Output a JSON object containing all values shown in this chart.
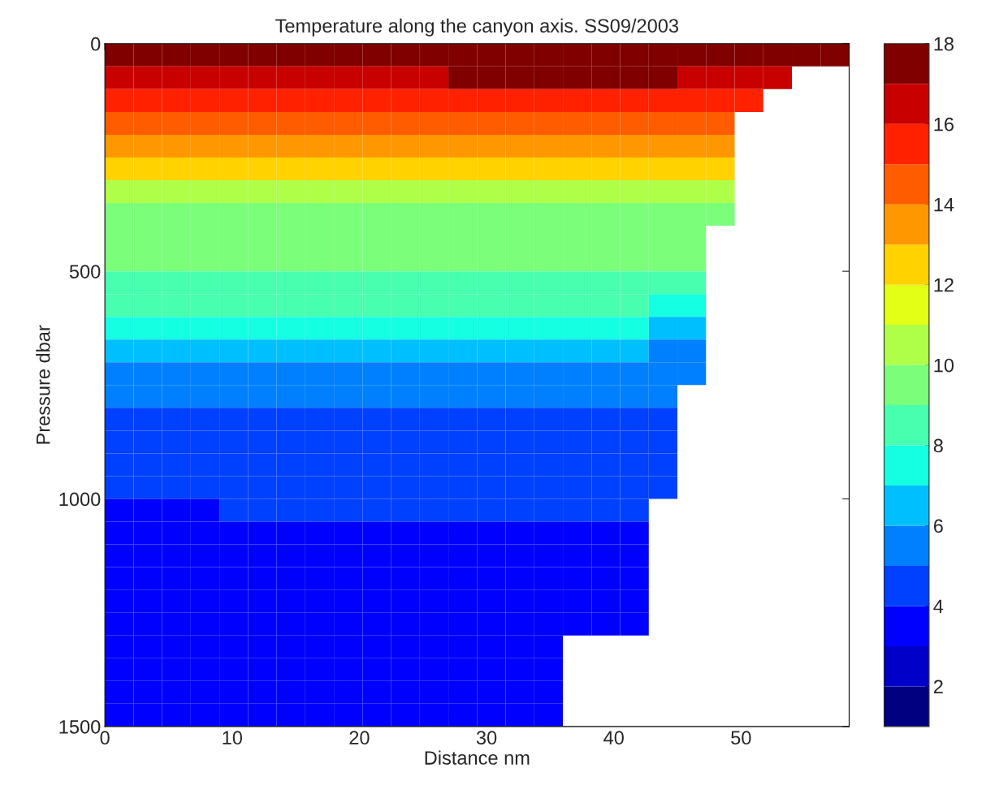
{
  "chart_data": {
    "type": "heatmap",
    "title": "Temperature along the canyon axis. SS09/2003",
    "xlabel": "Distance nm",
    "ylabel": "Pressure dbar",
    "xlim": [
      0,
      58.5
    ],
    "xticks": [
      0,
      10,
      20,
      30,
      40,
      50
    ],
    "ylim": [
      1500,
      0
    ],
    "yticks": [
      0,
      500,
      1000,
      1500
    ],
    "clim": [
      1,
      18
    ],
    "cticks": [
      2,
      4,
      6,
      8,
      10,
      12,
      14,
      16,
      18
    ],
    "grid": false,
    "cells": [
      [
        17.3,
        17.3,
        17.3,
        17.3,
        17.3,
        17.3,
        17.3,
        17.3,
        17.3,
        17.3,
        17.3,
        17.8,
        17.8,
        17.8,
        17.8,
        17.8,
        17.8,
        17.8,
        17.8,
        17.3,
        17.3,
        17.3,
        17.3,
        17.3,
        17.3,
        17.3
      ],
      [
        16.3,
        16.3,
        16.3,
        16.3,
        16.3,
        16.3,
        16.3,
        16.3,
        16.3,
        16.3,
        16.3,
        16.3,
        17.0,
        17.0,
        17.0,
        17.0,
        17.0,
        17.0,
        17.0,
        17.0,
        16.3,
        16.3,
        16.3,
        16.3,
        null,
        null
      ],
      [
        15.3,
        15.3,
        15.3,
        15.3,
        15.3,
        15.3,
        15.3,
        15.3,
        15.3,
        15.3,
        15.3,
        15.3,
        15.3,
        15.3,
        15.3,
        15.3,
        15.3,
        15.3,
        15.3,
        15.3,
        15.3,
        15.3,
        15.3,
        null,
        null,
        null
      ],
      [
        14.3,
        14.3,
        14.3,
        14.3,
        14.3,
        14.3,
        14.3,
        14.3,
        14.3,
        14.3,
        14.3,
        14.3,
        14.3,
        14.3,
        14.3,
        14.3,
        14.3,
        14.3,
        14.3,
        14.3,
        14.3,
        14.3,
        null,
        null,
        null,
        null
      ],
      [
        13.3,
        13.3,
        13.3,
        13.3,
        13.3,
        13.3,
        13.3,
        13.3,
        13.3,
        13.3,
        13.3,
        13.3,
        13.3,
        13.3,
        13.3,
        13.3,
        13.3,
        13.3,
        13.3,
        13.3,
        13.3,
        13.3,
        null,
        null,
        null,
        null
      ],
      [
        12.0,
        12.0,
        12.0,
        12.0,
        12.0,
        12.0,
        12.0,
        12.0,
        12.0,
        12.0,
        12.0,
        12.0,
        12.0,
        12.0,
        12.0,
        12.0,
        12.0,
        12.0,
        12.0,
        12.0,
        12.0,
        12.0,
        null,
        null,
        null,
        null
      ],
      [
        10.6,
        10.6,
        10.6,
        10.6,
        10.6,
        10.6,
        10.6,
        10.6,
        10.6,
        10.6,
        10.6,
        10.6,
        10.6,
        10.6,
        10.6,
        10.6,
        10.6,
        10.6,
        10.6,
        10.6,
        10.6,
        10.6,
        null,
        null,
        null,
        null
      ],
      [
        9.8,
        9.8,
        9.8,
        9.8,
        9.8,
        9.8,
        9.8,
        9.8,
        9.8,
        9.8,
        9.8,
        9.8,
        9.8,
        9.8,
        9.8,
        9.8,
        9.8,
        9.8,
        9.8,
        9.8,
        9.8,
        9.8,
        null,
        null,
        null,
        null
      ],
      [
        9.4,
        9.4,
        9.4,
        9.4,
        9.4,
        9.4,
        9.4,
        9.4,
        9.4,
        9.4,
        9.4,
        9.4,
        9.4,
        9.4,
        9.4,
        9.4,
        9.4,
        9.4,
        9.4,
        9.4,
        9.4,
        null,
        null,
        null,
        null,
        null
      ],
      [
        9.1,
        9.1,
        9.1,
        9.1,
        9.1,
        9.1,
        9.1,
        9.1,
        9.1,
        9.1,
        9.1,
        9.1,
        9.1,
        9.1,
        9.1,
        9.1,
        9.1,
        9.1,
        9.1,
        9.1,
        9.1,
        null,
        null,
        null,
        null,
        null
      ],
      [
        8.5,
        8.5,
        8.5,
        8.5,
        8.5,
        8.5,
        8.5,
        8.5,
        8.5,
        8.5,
        8.5,
        8.5,
        8.5,
        8.5,
        8.5,
        8.5,
        8.5,
        8.5,
        8.5,
        8.0,
        8.0,
        null,
        null,
        null,
        null,
        null
      ],
      [
        8.0,
        8.0,
        8.0,
        8.0,
        8.0,
        8.0,
        8.0,
        8.0,
        8.0,
        8.0,
        8.0,
        8.0,
        8.0,
        8.0,
        8.0,
        8.0,
        8.0,
        8.0,
        8.0,
        7.3,
        7.3,
        null,
        null,
        null,
        null,
        null
      ],
      [
        7.1,
        7.1,
        7.1,
        7.1,
        7.1,
        7.1,
        7.1,
        7.1,
        7.1,
        7.1,
        7.1,
        7.1,
        7.1,
        7.1,
        7.1,
        7.1,
        7.1,
        7.1,
        7.1,
        6.6,
        6.6,
        null,
        null,
        null,
        null,
        null
      ],
      [
        6.6,
        6.6,
        6.6,
        6.6,
        6.6,
        6.6,
        6.6,
        6.6,
        6.6,
        6.6,
        6.6,
        6.6,
        6.6,
        6.6,
        6.6,
        6.6,
        6.6,
        6.6,
        6.6,
        5.8,
        5.8,
        null,
        null,
        null,
        null,
        null
      ],
      [
        5.7,
        5.7,
        5.7,
        5.7,
        5.7,
        5.7,
        5.7,
        5.7,
        5.7,
        5.7,
        5.7,
        5.7,
        5.7,
        5.7,
        5.7,
        5.7,
        5.7,
        5.7,
        5.7,
        5.2,
        5.2,
        null,
        null,
        null,
        null,
        null
      ],
      [
        5.0,
        5.0,
        5.0,
        5.0,
        5.0,
        5.0,
        5.0,
        5.0,
        5.0,
        5.0,
        5.0,
        5.0,
        5.0,
        5.0,
        5.0,
        5.0,
        5.0,
        5.0,
        5.0,
        5.0,
        null,
        null,
        null,
        null,
        null,
        null
      ],
      [
        4.5,
        4.5,
        4.5,
        4.5,
        4.5,
        4.5,
        4.5,
        4.5,
        4.5,
        4.5,
        4.5,
        4.5,
        4.5,
        4.5,
        4.5,
        4.5,
        4.5,
        4.5,
        4.5,
        4.5,
        null,
        null,
        null,
        null,
        null,
        null
      ],
      [
        4.3,
        4.3,
        4.3,
        4.3,
        4.3,
        4.3,
        4.3,
        4.3,
        4.3,
        4.3,
        4.3,
        4.3,
        4.3,
        4.3,
        4.3,
        4.3,
        4.3,
        4.3,
        4.3,
        4.3,
        null,
        null,
        null,
        null,
        null,
        null
      ],
      [
        4.3,
        4.3,
        4.3,
        4.3,
        4.3,
        4.3,
        4.3,
        4.3,
        4.3,
        4.3,
        4.3,
        4.3,
        4.3,
        4.3,
        4.3,
        4.3,
        4.3,
        4.3,
        4.3,
        4.3,
        null,
        null,
        null,
        null,
        null,
        null
      ],
      [
        4.3,
        4.3,
        4.3,
        4.3,
        4.3,
        4.3,
        4.3,
        4.3,
        4.3,
        4.3,
        4.3,
        4.3,
        4.3,
        4.3,
        4.3,
        4.3,
        4.3,
        4.3,
        4.3,
        4.3,
        null,
        null,
        null,
        null,
        null,
        null
      ],
      [
        3.5,
        3.5,
        3.5,
        3.5,
        4.3,
        4.3,
        4.3,
        4.3,
        4.3,
        4.3,
        4.3,
        4.3,
        4.3,
        4.3,
        4.3,
        4.3,
        4.3,
        4.3,
        4.3,
        null,
        null,
        null,
        null,
        null,
        null,
        null
      ],
      [
        3.5,
        3.5,
        3.5,
        3.5,
        3.5,
        3.5,
        3.5,
        3.5,
        3.5,
        3.5,
        3.5,
        3.5,
        3.5,
        3.5,
        3.5,
        3.5,
        3.5,
        3.5,
        3.5,
        null,
        null,
        null,
        null,
        null,
        null,
        null
      ],
      [
        3.5,
        3.5,
        3.5,
        3.5,
        3.5,
        3.5,
        3.5,
        3.5,
        3.5,
        3.5,
        3.5,
        3.5,
        3.5,
        3.5,
        3.5,
        3.5,
        3.5,
        3.5,
        3.5,
        null,
        null,
        null,
        null,
        null,
        null,
        null
      ],
      [
        3.5,
        3.5,
        3.5,
        3.5,
        3.5,
        3.5,
        3.5,
        3.5,
        3.5,
        3.5,
        3.5,
        3.5,
        3.5,
        3.5,
        3.5,
        3.5,
        3.5,
        3.5,
        3.5,
        null,
        null,
        null,
        null,
        null,
        null,
        null
      ],
      [
        3.5,
        3.5,
        3.5,
        3.5,
        3.5,
        3.5,
        3.5,
        3.5,
        3.5,
        3.5,
        3.5,
        3.5,
        3.5,
        3.5,
        3.5,
        3.5,
        3.5,
        3.5,
        3.5,
        null,
        null,
        null,
        null,
        null,
        null,
        null
      ],
      [
        3.5,
        3.5,
        3.5,
        3.5,
        3.5,
        3.5,
        3.5,
        3.5,
        3.5,
        3.5,
        3.5,
        3.5,
        3.5,
        3.5,
        3.5,
        3.5,
        3.5,
        3.5,
        3.5,
        null,
        null,
        null,
        null,
        null,
        null,
        null
      ],
      [
        3.5,
        3.5,
        3.5,
        3.5,
        3.5,
        3.5,
        3.5,
        3.5,
        3.5,
        3.5,
        3.5,
        3.5,
        3.5,
        3.5,
        3.5,
        3.5,
        null,
        null,
        null,
        null,
        null,
        null,
        null,
        null,
        null,
        null
      ],
      [
        3.5,
        3.5,
        3.5,
        3.5,
        3.5,
        3.5,
        3.5,
        3.5,
        3.5,
        3.5,
        3.5,
        3.5,
        3.5,
        3.5,
        3.5,
        3.5,
        null,
        null,
        null,
        null,
        null,
        null,
        null,
        null,
        null,
        null
      ],
      [
        3.5,
        3.5,
        3.5,
        3.5,
        3.5,
        3.5,
        3.5,
        3.5,
        3.5,
        3.5,
        3.5,
        3.5,
        3.5,
        3.5,
        3.5,
        3.5,
        null,
        null,
        null,
        null,
        null,
        null,
        null,
        null,
        null,
        null
      ],
      [
        3.5,
        3.5,
        3.5,
        3.5,
        3.5,
        3.5,
        3.5,
        3.5,
        3.5,
        3.5,
        3.5,
        3.5,
        3.5,
        3.5,
        3.5,
        3.5,
        null,
        null,
        null,
        null,
        null,
        null,
        null,
        null,
        null,
        null
      ]
    ]
  }
}
